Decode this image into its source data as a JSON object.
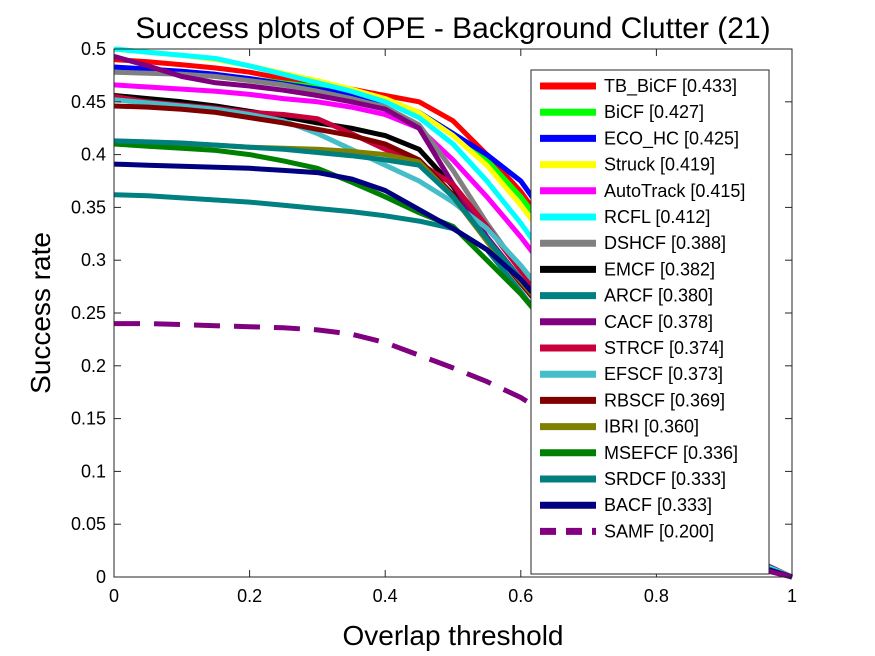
{
  "chart_data": {
    "type": "line",
    "title": "Success plots of OPE - Background Clutter (21)",
    "xlabel": "Overlap threshold",
    "ylabel": "Success rate",
    "xlim": [
      0,
      1
    ],
    "ylim": [
      0,
      0.5
    ],
    "xticks": [
      "0",
      "0.2",
      "0.4",
      "0.6",
      "0.8",
      "1"
    ],
    "yticks": [
      "0",
      "0.05",
      "0.1",
      "0.15",
      "0.2",
      "0.25",
      "0.3",
      "0.35",
      "0.4",
      "0.45",
      "0.5"
    ],
    "grid": false,
    "legend_position": "right",
    "x": [
      0,
      0.05,
      0.1,
      0.15,
      0.2,
      0.25,
      0.3,
      0.35,
      0.4,
      0.45,
      0.5,
      0.55,
      0.6,
      0.65,
      0.7,
      0.75,
      0.8,
      0.85,
      0.9,
      0.95,
      1
    ],
    "series": [
      {
        "name": "TB_BiCF [0.433]",
        "color": "#ff0000",
        "dash": false,
        "values": [
          0.49,
          0.488,
          0.485,
          0.482,
          0.478,
          0.472,
          0.468,
          0.462,
          0.456,
          0.45,
          0.432,
          0.4,
          0.365,
          0.32,
          0.27,
          0.21,
          0.15,
          0.09,
          0.045,
          0.015,
          0
        ]
      },
      {
        "name": "BiCF [0.427]",
        "color": "#00ff00",
        "dash": false,
        "values": [
          0.48,
          0.479,
          0.477,
          0.475,
          0.472,
          0.468,
          0.464,
          0.458,
          0.452,
          0.44,
          0.42,
          0.395,
          0.36,
          0.318,
          0.265,
          0.205,
          0.145,
          0.088,
          0.043,
          0.014,
          0
        ]
      },
      {
        "name": "ECO_HC [0.425]",
        "color": "#0000ff",
        "dash": false,
        "values": [
          0.483,
          0.481,
          0.479,
          0.476,
          0.472,
          0.467,
          0.462,
          0.457,
          0.45,
          0.44,
          0.42,
          0.4,
          0.375,
          0.33,
          0.275,
          0.21,
          0.148,
          0.09,
          0.044,
          0.014,
          0
        ]
      },
      {
        "name": "Struck [0.419]",
        "color": "#ffff00",
        "dash": false,
        "values": [
          0.5,
          0.497,
          0.494,
          0.49,
          0.484,
          0.477,
          0.47,
          0.462,
          0.453,
          0.44,
          0.418,
          0.39,
          0.352,
          0.31,
          0.26,
          0.2,
          0.14,
          0.085,
          0.042,
          0.013,
          0
        ]
      },
      {
        "name": "AutoTrack [0.415]",
        "color": "#ff00ff",
        "dash": false,
        "values": [
          0.466,
          0.464,
          0.462,
          0.46,
          0.457,
          0.453,
          0.45,
          0.445,
          0.438,
          0.425,
          0.395,
          0.36,
          0.322,
          0.28,
          0.235,
          0.182,
          0.128,
          0.078,
          0.038,
          0.012,
          0
        ]
      },
      {
        "name": "RCFL [0.412]",
        "color": "#00ffff",
        "dash": false,
        "values": [
          0.5,
          0.497,
          0.494,
          0.491,
          0.484,
          0.476,
          0.468,
          0.46,
          0.45,
          0.435,
          0.41,
          0.375,
          0.335,
          0.29,
          0.24,
          0.185,
          0.13,
          0.08,
          0.04,
          0.013,
          0
        ]
      },
      {
        "name": "DSHCF [0.388]",
        "color": "#808080",
        "dash": false,
        "values": [
          0.478,
          0.477,
          0.476,
          0.474,
          0.47,
          0.466,
          0.46,
          0.453,
          0.445,
          0.428,
          0.385,
          0.335,
          0.29,
          0.25,
          0.21,
          0.165,
          0.118,
          0.072,
          0.035,
          0.011,
          0
        ]
      },
      {
        "name": "EMCF [0.382]",
        "color": "#000000",
        "dash": false,
        "values": [
          0.456,
          0.453,
          0.45,
          0.446,
          0.441,
          0.436,
          0.43,
          0.425,
          0.418,
          0.405,
          0.37,
          0.32,
          0.28,
          0.242,
          0.2,
          0.158,
          0.112,
          0.068,
          0.033,
          0.011,
          0
        ]
      },
      {
        "name": "ARCF [0.380]",
        "color": "#008080",
        "dash": false,
        "values": [
          0.362,
          0.361,
          0.359,
          0.357,
          0.355,
          0.352,
          0.349,
          0.346,
          0.342,
          0.337,
          0.33,
          0.31,
          0.27,
          0.228,
          0.188,
          0.148,
          0.105,
          0.064,
          0.031,
          0.01,
          0
        ]
      },
      {
        "name": "CACF [0.378]",
        "color": "#800080",
        "dash": false,
        "values": [
          0.493,
          0.484,
          0.474,
          0.468,
          0.465,
          0.461,
          0.456,
          0.45,
          0.443,
          0.425,
          0.372,
          0.322,
          0.282,
          0.243,
          0.2,
          0.157,
          0.11,
          0.067,
          0.032,
          0.01,
          0
        ]
      },
      {
        "name": "STRCF [0.374]",
        "color": "#c8003c",
        "dash": false,
        "values": [
          0.455,
          0.45,
          0.447,
          0.444,
          0.44,
          0.438,
          0.434,
          0.42,
          0.405,
          0.392,
          0.372,
          0.332,
          0.29,
          0.25,
          0.208,
          0.162,
          0.115,
          0.07,
          0.034,
          0.011,
          0
        ]
      },
      {
        "name": "EFSCF [0.373]",
        "color": "#46bec8",
        "dash": false,
        "values": [
          0.452,
          0.449,
          0.446,
          0.443,
          0.438,
          0.432,
          0.42,
          0.405,
          0.39,
          0.375,
          0.355,
          0.33,
          0.295,
          0.255,
          0.21,
          0.163,
          0.116,
          0.071,
          0.034,
          0.011,
          0
        ]
      },
      {
        "name": "RBSCF [0.369]",
        "color": "#800000",
        "dash": false,
        "values": [
          0.446,
          0.445,
          0.443,
          0.44,
          0.435,
          0.43,
          0.424,
          0.418,
          0.41,
          0.395,
          0.362,
          0.318,
          0.278,
          0.24,
          0.2,
          0.156,
          0.11,
          0.067,
          0.032,
          0.01,
          0
        ]
      },
      {
        "name": "IBRI [0.360]",
        "color": "#808000",
        "dash": false,
        "values": [
          0.41,
          0.41,
          0.41,
          0.409,
          0.407,
          0.406,
          0.405,
          0.403,
          0.4,
          0.393,
          0.36,
          0.318,
          0.28,
          0.243,
          0.2,
          0.155,
          0.11,
          0.067,
          0.032,
          0.01,
          0
        ]
      },
      {
        "name": "MSEFCF [0.336]",
        "color": "#008000",
        "dash": false,
        "values": [
          0.41,
          0.408,
          0.406,
          0.404,
          0.4,
          0.394,
          0.387,
          0.374,
          0.36,
          0.345,
          0.332,
          0.3,
          0.268,
          0.23,
          0.19,
          0.148,
          0.105,
          0.064,
          0.031,
          0.01,
          0
        ]
      },
      {
        "name": "SRDCF [0.333]",
        "color": "#007f7f",
        "dash": false,
        "values": [
          0.413,
          0.412,
          0.411,
          0.409,
          0.407,
          0.405,
          0.402,
          0.399,
          0.395,
          0.39,
          0.36,
          0.32,
          0.282,
          0.245,
          0.202,
          0.158,
          0.112,
          0.068,
          0.033,
          0.01,
          0
        ]
      },
      {
        "name": "BACF [0.333]",
        "color": "#000080",
        "dash": false,
        "values": [
          0.391,
          0.39,
          0.389,
          0.388,
          0.387,
          0.385,
          0.383,
          0.377,
          0.366,
          0.348,
          0.33,
          0.31,
          0.282,
          0.245,
          0.205,
          0.16,
          0.113,
          0.069,
          0.033,
          0.01,
          0
        ]
      },
      {
        "name": "SAMF [0.200]",
        "color": "#800080",
        "dash": true,
        "values": [
          0.24,
          0.24,
          0.239,
          0.238,
          0.237,
          0.236,
          0.234,
          0.23,
          0.222,
          0.21,
          0.198,
          0.185,
          0.17,
          0.15,
          0.128,
          0.102,
          0.075,
          0.048,
          0.024,
          0.008,
          0
        ]
      }
    ]
  }
}
